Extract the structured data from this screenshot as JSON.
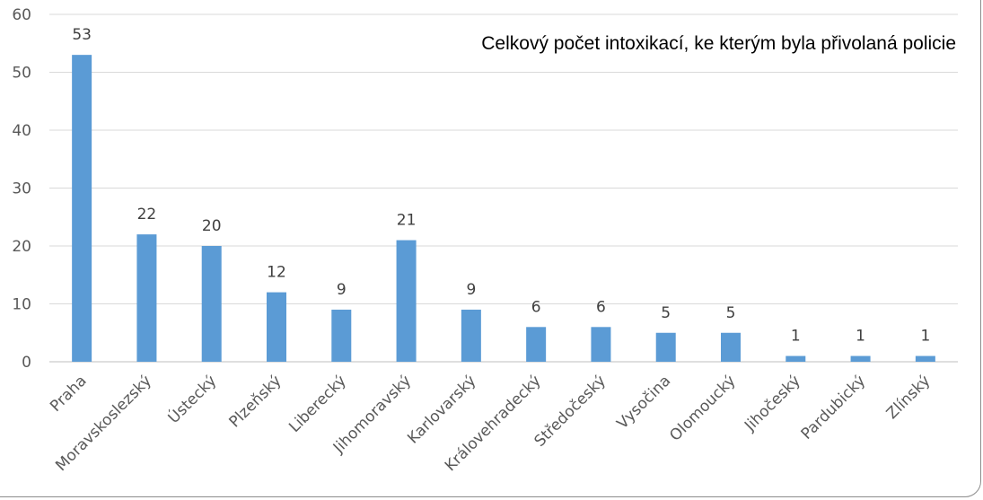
{
  "chart_data": {
    "type": "bar",
    "title": "Celkový počet intoxikací, ke kterým byla přivolaná policie",
    "categories": [
      "Praha",
      "Moravskoslezský",
      "Ústecký",
      "Plzeňský",
      "Liberecký",
      "Jihomoravský",
      "Karlovarský",
      "Královehradecký",
      "Středočeský",
      "Vysočina",
      "Olomoucký",
      "Jihočeský",
      "Pardubický",
      "Zlínský"
    ],
    "values": [
      53,
      22,
      20,
      12,
      9,
      21,
      9,
      6,
      6,
      5,
      5,
      1,
      1,
      1
    ],
    "data_labels": [
      "53",
      "22",
      "20",
      "12",
      "9",
      "21",
      "9",
      "6",
      "6",
      "5",
      "5",
      "1",
      "1",
      "1"
    ],
    "y_ticks": [
      "0",
      "10",
      "20",
      "30",
      "40",
      "50",
      "60"
    ],
    "ylim": [
      0,
      60
    ],
    "xlabel": "",
    "ylabel": "",
    "grid": true,
    "legend": "none",
    "bar_color": "#5b9bd5"
  }
}
